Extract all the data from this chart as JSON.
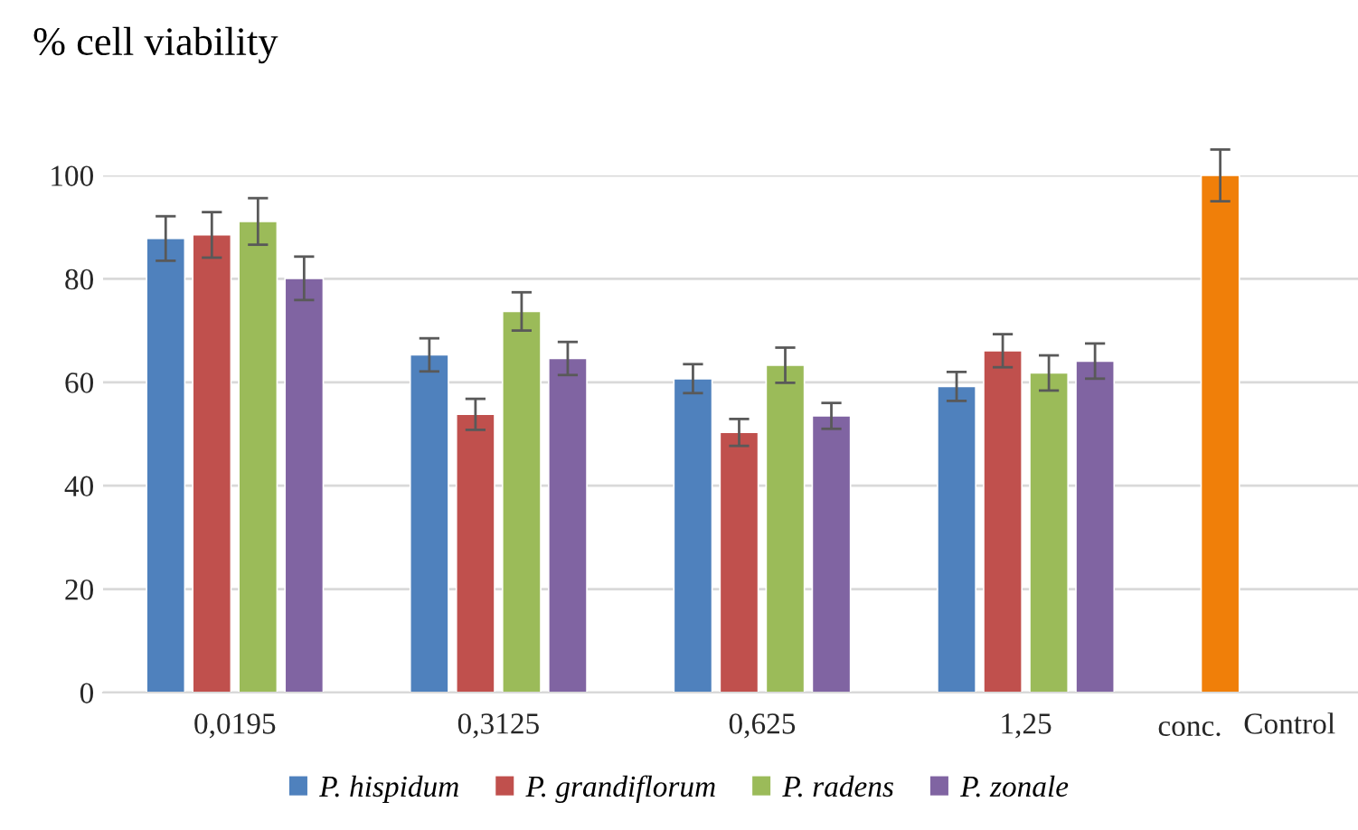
{
  "chart_data": {
    "type": "bar",
    "title": "% cell viability",
    "xlabel": "conc.",
    "categories": [
      "0,0195",
      "0,3125",
      "0,625",
      "1,25",
      "Control"
    ],
    "series": [
      {
        "name": "P. hispidum",
        "color": "#4f81bd",
        "colors": [
          "#4f81bd",
          "#4f81bd",
          "#4f81bd",
          "#4f81bd",
          "#f07f09"
        ],
        "values": [
          87.8,
          65.3,
          60.7,
          59.2,
          100
        ],
        "errors": [
          4.3,
          3.2,
          2.8,
          2.8,
          5
        ]
      },
      {
        "name": "P. grandiflorum",
        "color": "#c0504d",
        "values": [
          88.5,
          53.8,
          50.3,
          66.1,
          null
        ],
        "errors": [
          4.4,
          3,
          2.6,
          3.2,
          null
        ]
      },
      {
        "name": "P. radens",
        "color": "#9bbb59",
        "values": [
          91.1,
          73.7,
          63.3,
          61.8,
          null
        ],
        "errors": [
          4.5,
          3.7,
          3.4,
          3.4,
          null
        ]
      },
      {
        "name": "P. zonale",
        "color": "#8064a2",
        "values": [
          80.1,
          64.6,
          53.5,
          64.1,
          null
        ],
        "errors": [
          4.2,
          3.2,
          2.5,
          3.4,
          null
        ]
      }
    ],
    "ylim": [
      0,
      100
    ],
    "yticks": [
      0,
      20,
      40,
      60,
      80,
      100
    ],
    "grid": "y",
    "legend": "bottom"
  }
}
